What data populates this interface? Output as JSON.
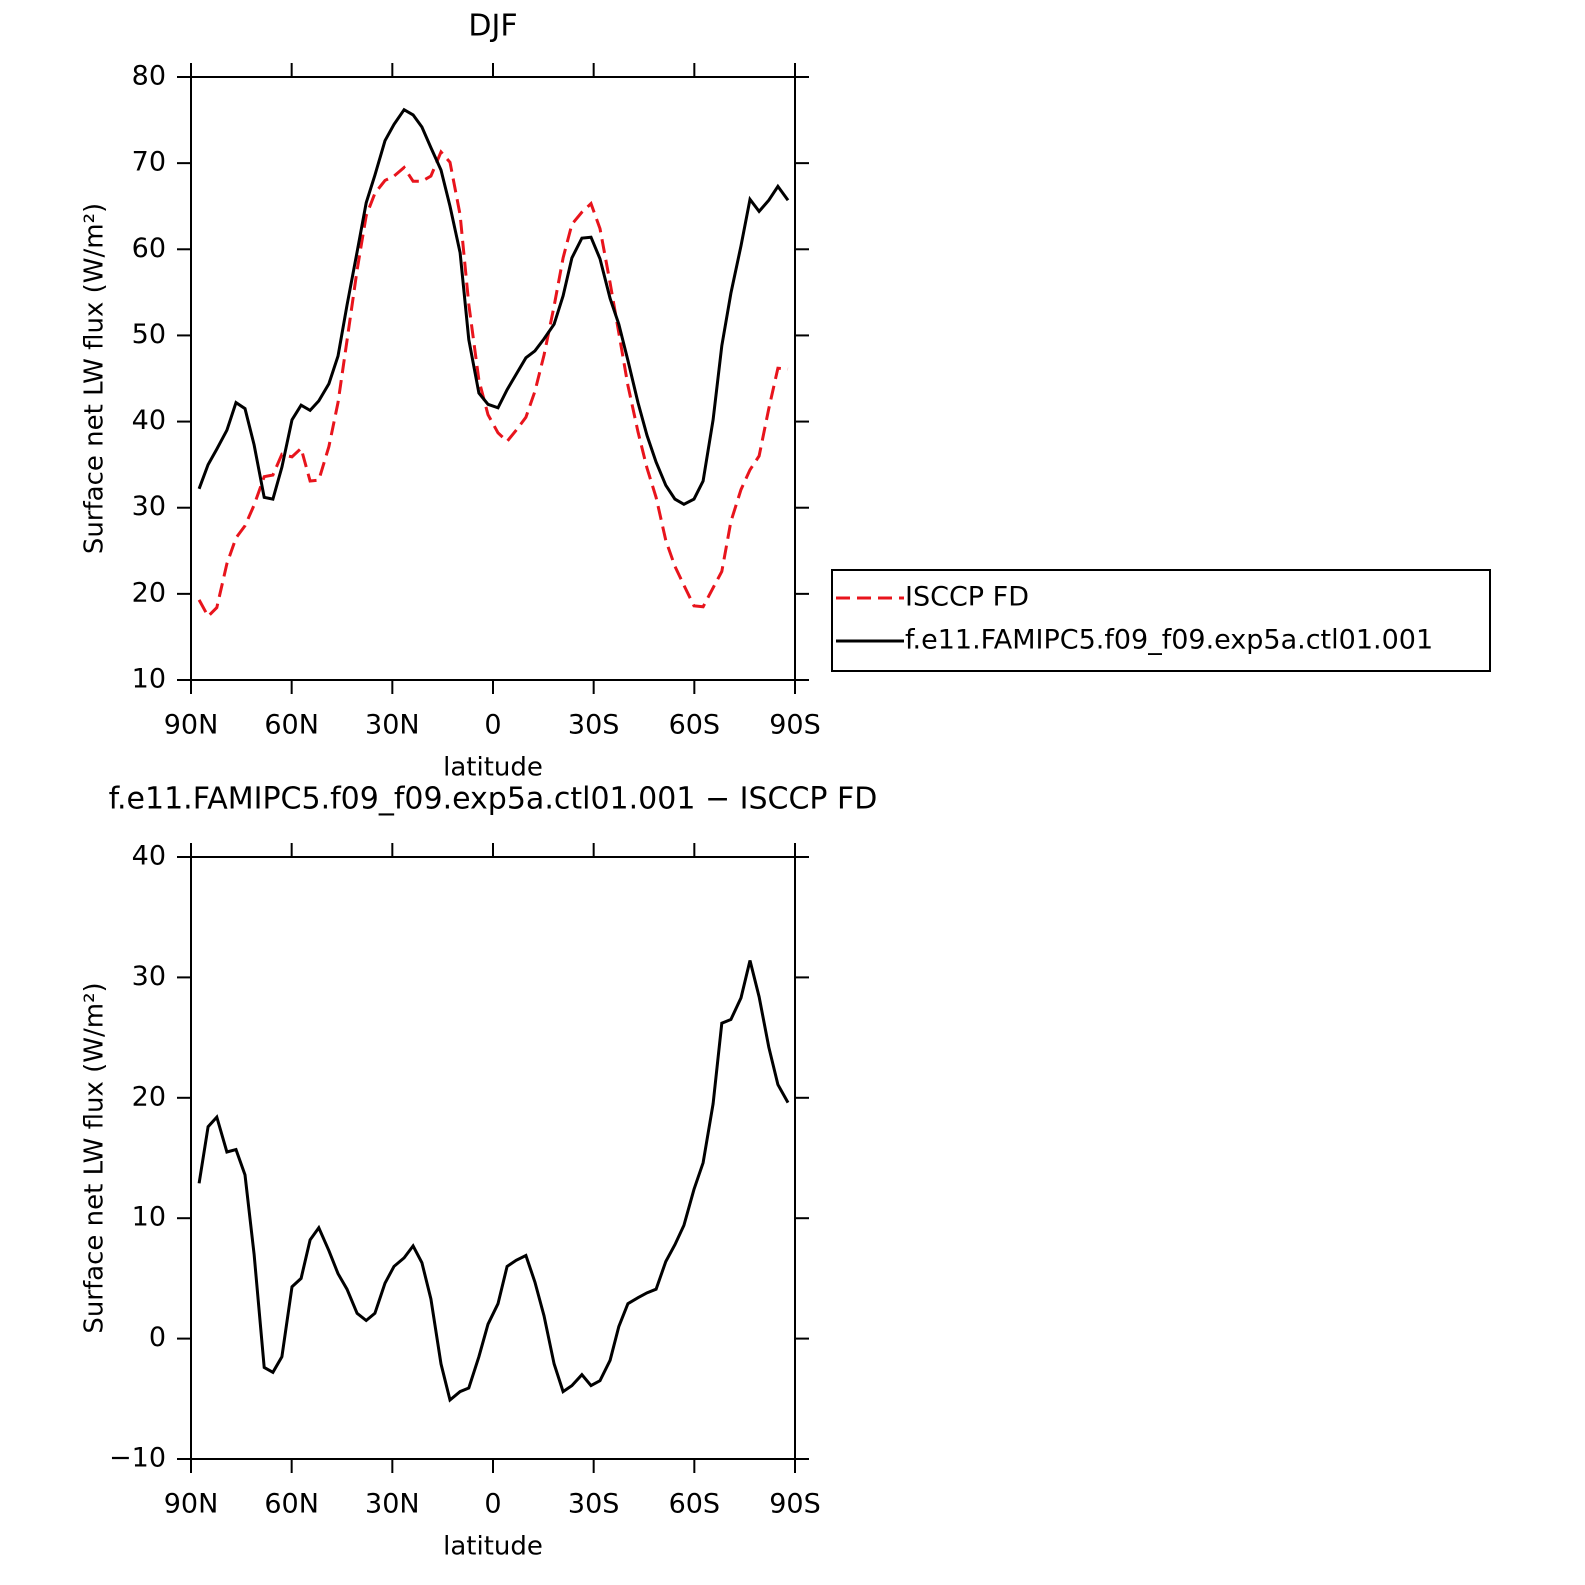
{
  "chart_data": [
    {
      "type": "line",
      "title": "DJF",
      "xlabel": "latitude",
      "ylabel": "Surface net LW flux (W/m²)",
      "x": [
        87.6,
        84.9,
        82.3,
        79.3,
        76.6,
        73.9,
        71.2,
        68.2,
        65.6,
        62.9,
        59.9,
        57.2,
        54.5,
        51.9,
        48.9,
        46.2,
        43.5,
        40.5,
        37.8,
        35.2,
        32.2,
        29.5,
        26.5,
        23.8,
        21.2,
        18.5,
        15.5,
        12.8,
        9.8,
        7.2,
        4.2,
        1.5,
        -1.5,
        -4.2,
        -6.9,
        -9.8,
        -12.5,
        -15.2,
        -18.2,
        -20.9,
        -23.5,
        -26.5,
        -29.2,
        -31.9,
        -34.9,
        -37.5,
        -40.2,
        -43.2,
        -45.9,
        -48.6,
        -51.5,
        -54.2,
        -56.9,
        -59.9,
        -62.6,
        -65.6,
        -68.2,
        -70.9,
        -73.9,
        -76.6,
        -79.3,
        -82.2,
        -84.9,
        -87.9
      ],
      "xlim": [
        90,
        -90
      ],
      "xticks": [
        {
          "value": 90,
          "label": "90N"
        },
        {
          "value": 60,
          "label": "60N"
        },
        {
          "value": 30,
          "label": "30N"
        },
        0,
        {
          "value": -30,
          "label": "30S"
        },
        {
          "value": -60,
          "label": "60S"
        },
        {
          "value": -90,
          "label": "90S"
        }
      ],
      "ylim": [
        10,
        80
      ],
      "yticks": [
        10,
        20,
        30,
        40,
        50,
        60,
        70,
        80
      ],
      "legend": "right",
      "series": [
        {
          "name": "ISCCP FD",
          "color": "#e8141c",
          "dash": "dashed",
          "values": [
            19.3,
            17.4,
            18.4,
            23.5,
            26.5,
            27.9,
            30.3,
            33.6,
            33.8,
            36.2,
            35.9,
            36.9,
            33.1,
            33.2,
            37.1,
            42.2,
            49.4,
            57.6,
            63.9,
            66.5,
            68.0,
            68.5,
            69.5,
            67.9,
            67.9,
            68.5,
            71.3,
            70.1,
            64.0,
            53.6,
            44.8,
            40.8,
            38.7,
            37.7,
            39.0,
            40.5,
            43.5,
            47.7,
            53.4,
            59.0,
            62.9,
            64.3,
            65.3,
            62.4,
            56.1,
            50.3,
            44.2,
            38.8,
            34.6,
            31.2,
            26.2,
            23.2,
            21.0,
            18.6,
            18.5,
            20.7,
            22.6,
            28.4,
            32.1,
            34.4,
            36.0,
            41.5,
            46.2,
            46.1
          ]
        },
        {
          "name": "f.e11.FAMIPC5.f09_f09.exp5a.ctl01.001",
          "color": "#000000",
          "dash": "solid",
          "values": [
            32.2,
            35.0,
            36.8,
            39.0,
            42.2,
            41.5,
            37.3,
            31.2,
            31.0,
            34.7,
            40.2,
            41.9,
            41.3,
            42.4,
            44.4,
            47.6,
            53.5,
            59.7,
            65.4,
            68.6,
            72.6,
            74.5,
            76.2,
            75.6,
            74.2,
            71.8,
            69.2,
            65.0,
            59.6,
            49.5,
            43.3,
            42.0,
            41.6,
            43.7,
            45.5,
            47.4,
            48.2,
            49.6,
            51.3,
            54.6,
            59.0,
            61.3,
            61.4,
            58.9,
            54.3,
            51.3,
            47.1,
            42.2,
            38.4,
            35.3,
            32.6,
            31.0,
            30.4,
            31.0,
            33.1,
            40.2,
            48.8,
            54.9,
            60.4,
            65.8,
            64.4,
            65.7,
            67.3,
            65.7
          ]
        }
      ]
    },
    {
      "type": "line",
      "title": "f.e11.FAMIPC5.f09_f09.exp5a.ctl01.001 − ISCCP FD",
      "xlabel": "latitude",
      "ylabel": "Surface net LW flux (W/m²)",
      "x": [
        87.6,
        84.9,
        82.3,
        79.3,
        76.6,
        73.9,
        71.2,
        68.2,
        65.6,
        62.9,
        59.9,
        57.2,
        54.5,
        51.9,
        48.9,
        46.2,
        43.5,
        40.5,
        37.8,
        35.2,
        32.2,
        29.5,
        26.5,
        23.8,
        21.2,
        18.5,
        15.5,
        12.8,
        9.8,
        7.2,
        4.2,
        1.5,
        -1.5,
        -4.2,
        -6.9,
        -9.8,
        -12.5,
        -15.2,
        -18.2,
        -20.9,
        -23.5,
        -26.5,
        -29.2,
        -31.9,
        -34.9,
        -37.5,
        -40.2,
        -43.2,
        -45.9,
        -48.6,
        -51.5,
        -54.2,
        -56.9,
        -59.9,
        -62.6,
        -65.6,
        -68.2,
        -70.9,
        -73.9,
        -76.6,
        -79.3,
        -82.2,
        -84.9,
        -87.9
      ],
      "xlim": [
        90,
        -90
      ],
      "xticks": [
        {
          "value": 90,
          "label": "90N"
        },
        {
          "value": 60,
          "label": "60N"
        },
        {
          "value": 30,
          "label": "30N"
        },
        0,
        {
          "value": -30,
          "label": "30S"
        },
        {
          "value": -60,
          "label": "60S"
        },
        {
          "value": -90,
          "label": "90S"
        }
      ],
      "ylim": [
        -10,
        40
      ],
      "yticks": [
        {
          "value": -10,
          "label": "−10"
        },
        0,
        10,
        20,
        30,
        40
      ],
      "series": [
        {
          "color": "#000000",
          "dash": "solid",
          "values": [
            12.9,
            17.6,
            18.4,
            15.5,
            15.7,
            13.6,
            7.0,
            -2.4,
            -2.8,
            -1.5,
            4.3,
            5.0,
            8.2,
            9.2,
            7.3,
            5.4,
            4.1,
            2.1,
            1.5,
            2.1,
            4.6,
            6.0,
            6.7,
            7.7,
            6.3,
            3.3,
            -2.1,
            -5.1,
            -4.4,
            -4.1,
            -1.5,
            1.2,
            2.9,
            6.0,
            6.5,
            6.9,
            4.7,
            1.9,
            -2.1,
            -4.4,
            -3.9,
            -3.0,
            -3.9,
            -3.5,
            -1.8,
            1.0,
            2.9,
            3.4,
            3.8,
            4.1,
            6.4,
            7.8,
            9.4,
            12.4,
            14.6,
            19.5,
            26.2,
            26.5,
            28.3,
            31.4,
            28.4,
            24.2,
            21.1,
            19.6
          ]
        }
      ]
    }
  ]
}
